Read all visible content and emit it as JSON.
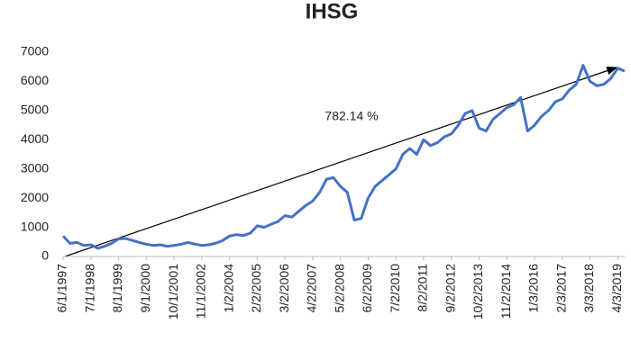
{
  "chart_data": {
    "type": "line",
    "title": "IHSG",
    "categories": [
      "6/1/1997",
      null,
      null,
      null,
      "7/1/1998",
      null,
      null,
      null,
      "8/1/1999",
      null,
      null,
      null,
      "9/1/2000",
      null,
      null,
      null,
      "10/1/2001",
      null,
      null,
      null,
      "11/1/2002",
      null,
      null,
      null,
      "1/2/2004",
      null,
      null,
      null,
      "2/2/2005",
      null,
      null,
      null,
      "3/2/2006",
      null,
      null,
      null,
      "4/2/2007",
      null,
      null,
      null,
      "5/2/2008",
      null,
      null,
      null,
      "6/2/2009",
      null,
      null,
      null,
      "7/2/2010",
      null,
      null,
      null,
      "8/2/2011",
      null,
      null,
      null,
      "9/2/2012",
      null,
      null,
      null,
      "10/2/2013",
      null,
      null,
      null,
      "11/2/2014",
      null,
      null,
      null,
      "1/3/2016",
      null,
      null,
      null,
      "2/3/2017",
      null,
      null,
      null,
      "3/3/2018",
      null,
      null,
      null,
      "4/3/2019",
      null
    ],
    "series": [
      {
        "name": "IHSG",
        "color": "#4472c4",
        "values": [
          700,
          450,
          480,
          380,
          400,
          280,
          350,
          450,
          600,
          620,
          550,
          480,
          420,
          380,
          400,
          350,
          380,
          420,
          480,
          430,
          380,
          400,
          450,
          550,
          700,
          750,
          720,
          800,
          1050,
          1000,
          1100,
          1200,
          1400,
          1350,
          1550,
          1750,
          1900,
          2200,
          2650,
          2700,
          2400,
          2200,
          1250,
          1300,
          2000,
          2400,
          2600,
          2800,
          3000,
          3500,
          3700,
          3500,
          4000,
          3800,
          3900,
          4100,
          4200,
          4500,
          4900,
          5000,
          4400,
          4300,
          4700,
          4900,
          5100,
          5200,
          5450,
          4300,
          4500,
          4800,
          5000,
          5300,
          5400,
          5700,
          5900,
          6550,
          6000,
          5850,
          5900,
          6100,
          6450,
          6350
        ]
      }
    ],
    "annotation": "782.14 %",
    "ylim": [
      0,
      7000
    ],
    "yticks": [
      0,
      1000,
      2000,
      3000,
      4000,
      5000,
      6000,
      7000
    ],
    "grid": false
  }
}
